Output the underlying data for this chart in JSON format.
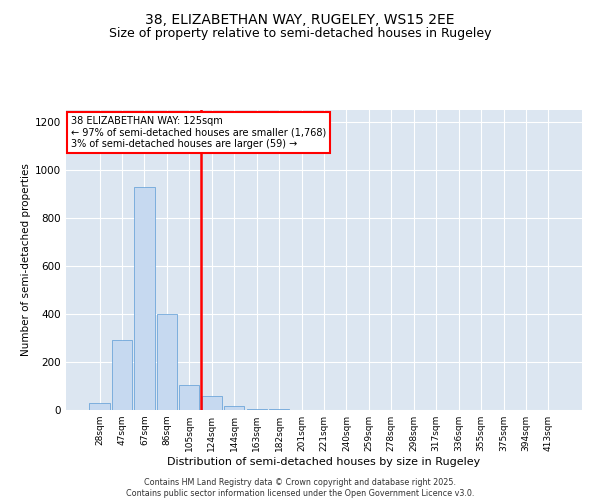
{
  "title1": "38, ELIZABETHAN WAY, RUGELEY, WS15 2EE",
  "title2": "Size of property relative to semi-detached houses in Rugeley",
  "xlabel": "Distribution of semi-detached houses by size in Rugeley",
  "ylabel": "Number of semi-detached properties",
  "categories": [
    "28sqm",
    "47sqm",
    "67sqm",
    "86sqm",
    "105sqm",
    "124sqm",
    "144sqm",
    "163sqm",
    "182sqm",
    "201sqm",
    "221sqm",
    "240sqm",
    "259sqm",
    "278sqm",
    "298sqm",
    "317sqm",
    "336sqm",
    "355sqm",
    "375sqm",
    "394sqm",
    "413sqm"
  ],
  "values": [
    30,
    290,
    930,
    400,
    105,
    60,
    15,
    3,
    3,
    0,
    0,
    0,
    0,
    0,
    0,
    0,
    0,
    0,
    0,
    0,
    0
  ],
  "bar_color": "#c6d9f0",
  "bar_edge_color": "#5b9bd5",
  "vline_color": "red",
  "annotation_text": "38 ELIZABETHAN WAY: 125sqm\n← 97% of semi-detached houses are smaller (1,768)\n3% of semi-detached houses are larger (59) →",
  "ylim": [
    0,
    1250
  ],
  "yticks": [
    0,
    200,
    400,
    600,
    800,
    1000,
    1200
  ],
  "background_color": "#dce6f1",
  "footer": "Contains HM Land Registry data © Crown copyright and database right 2025.\nContains public sector information licensed under the Open Government Licence v3.0.",
  "title_fontsize": 10,
  "subtitle_fontsize": 9,
  "vline_index": 5
}
